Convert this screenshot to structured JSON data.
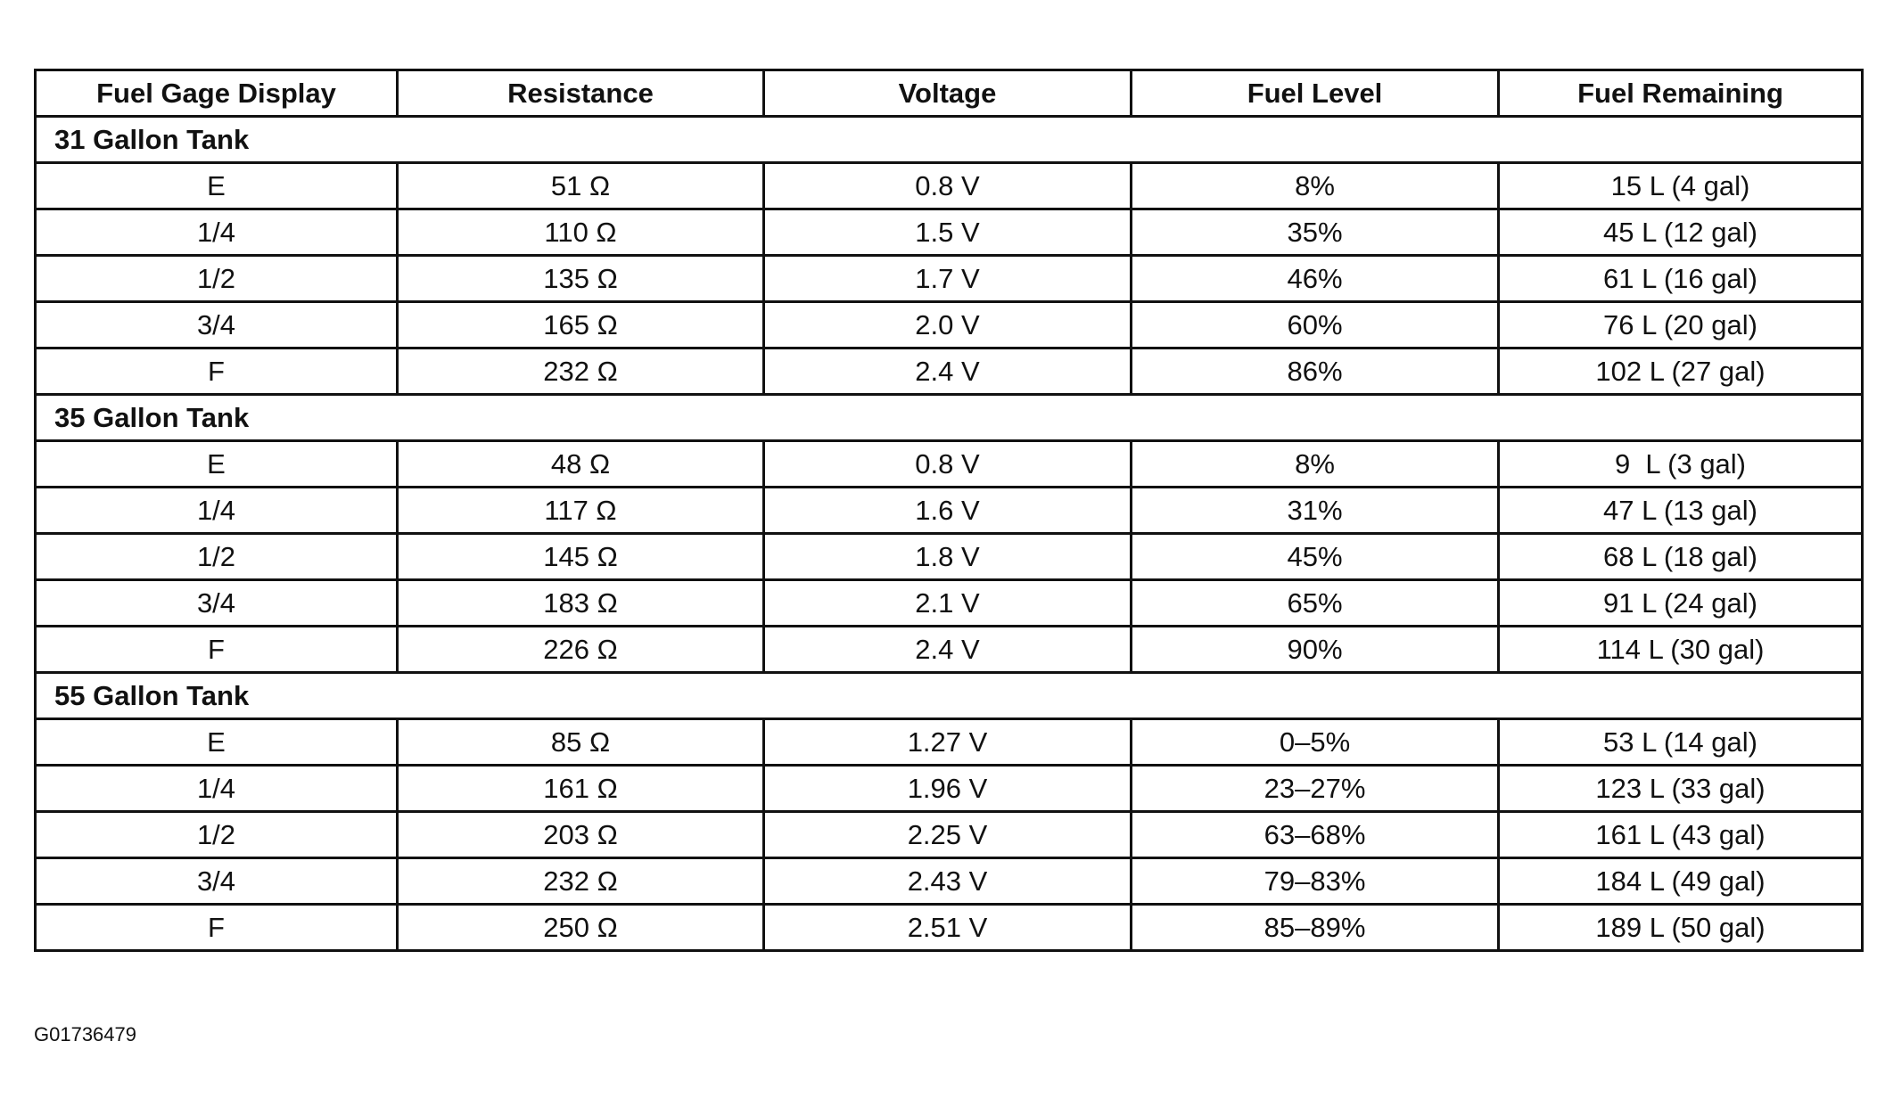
{
  "table": {
    "header": [
      "Fuel Gage Display",
      "Resistance",
      "Voltage",
      "Fuel Level",
      "Fuel Remaining"
    ],
    "sections": [
      {
        "title": "31 Gallon Tank",
        "rows": [
          [
            "E",
            "51 Ω",
            "0.8 V",
            "8%",
            "15 L (4 gal)"
          ],
          [
            "1/4",
            "110 Ω",
            "1.5 V",
            "35%",
            "45 L (12 gal)"
          ],
          [
            "1/2",
            "135 Ω",
            "1.7 V",
            "46%",
            "61 L (16 gal)"
          ],
          [
            "3/4",
            "165 Ω",
            "2.0 V",
            "60%",
            "76 L (20 gal)"
          ],
          [
            "F",
            "232 Ω",
            "2.4 V",
            "86%",
            "102 L (27 gal)"
          ]
        ]
      },
      {
        "title": "35 Gallon Tank",
        "rows": [
          [
            "E",
            "48 Ω",
            "0.8 V",
            "8%",
            "9  L (3 gal)"
          ],
          [
            "1/4",
            "117 Ω",
            "1.6 V",
            "31%",
            "47 L (13 gal)"
          ],
          [
            "1/2",
            "145 Ω",
            "1.8 V",
            "45%",
            "68 L (18 gal)"
          ],
          [
            "3/4",
            "183 Ω",
            "2.1 V",
            "65%",
            "91 L (24 gal)"
          ],
          [
            "F",
            "226 Ω",
            "2.4 V",
            "90%",
            "114 L (30 gal)"
          ]
        ]
      },
      {
        "title": "55 Gallon Tank",
        "rows": [
          [
            "E",
            "85 Ω",
            "1.27 V",
            "0–5%",
            "53 L (14 gal)"
          ],
          [
            "1/4",
            "161 Ω",
            "1.96 V",
            "23–27%",
            "123 L (33 gal)"
          ],
          [
            "1/2",
            "203 Ω",
            "2.25 V",
            "63–68%",
            "161 L (43 gal)"
          ],
          [
            "3/4",
            "232 Ω",
            "2.43 V",
            "79–83%",
            "184 L (49 gal)"
          ],
          [
            "F",
            "250 Ω",
            "2.51 V",
            "85–89%",
            "189 L (50 gal)"
          ]
        ]
      }
    ]
  },
  "footer": {
    "code": "G01736479"
  }
}
